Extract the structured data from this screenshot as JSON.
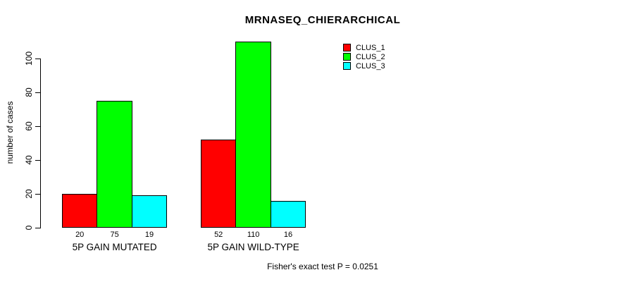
{
  "chart_data": {
    "type": "bar",
    "title": "MRNASEQ_CHIERARCHICAL",
    "xlabel": "",
    "ylabel": "number of cases",
    "categories": [
      "5P GAIN MUTATED",
      "5P GAIN WILD-TYPE"
    ],
    "series": [
      {
        "name": "CLUS_1",
        "color": "#FF0000",
        "values": [
          20,
          52
        ]
      },
      {
        "name": "CLUS_2",
        "color": "#00FF00",
        "values": [
          75,
          110
        ]
      },
      {
        "name": "CLUS_3",
        "color": "#00FFFF",
        "values": [
          19,
          16
        ]
      }
    ],
    "bar_value_labels": [
      [
        "20",
        "75",
        "19"
      ],
      [
        "52",
        "110",
        "16"
      ]
    ],
    "yticks": [
      0,
      20,
      40,
      60,
      80,
      100
    ],
    "ylim": [
      0,
      110
    ],
    "grid": false,
    "legend_position": "top-right",
    "annotation": "Fisher's exact test P = 0.0251"
  }
}
